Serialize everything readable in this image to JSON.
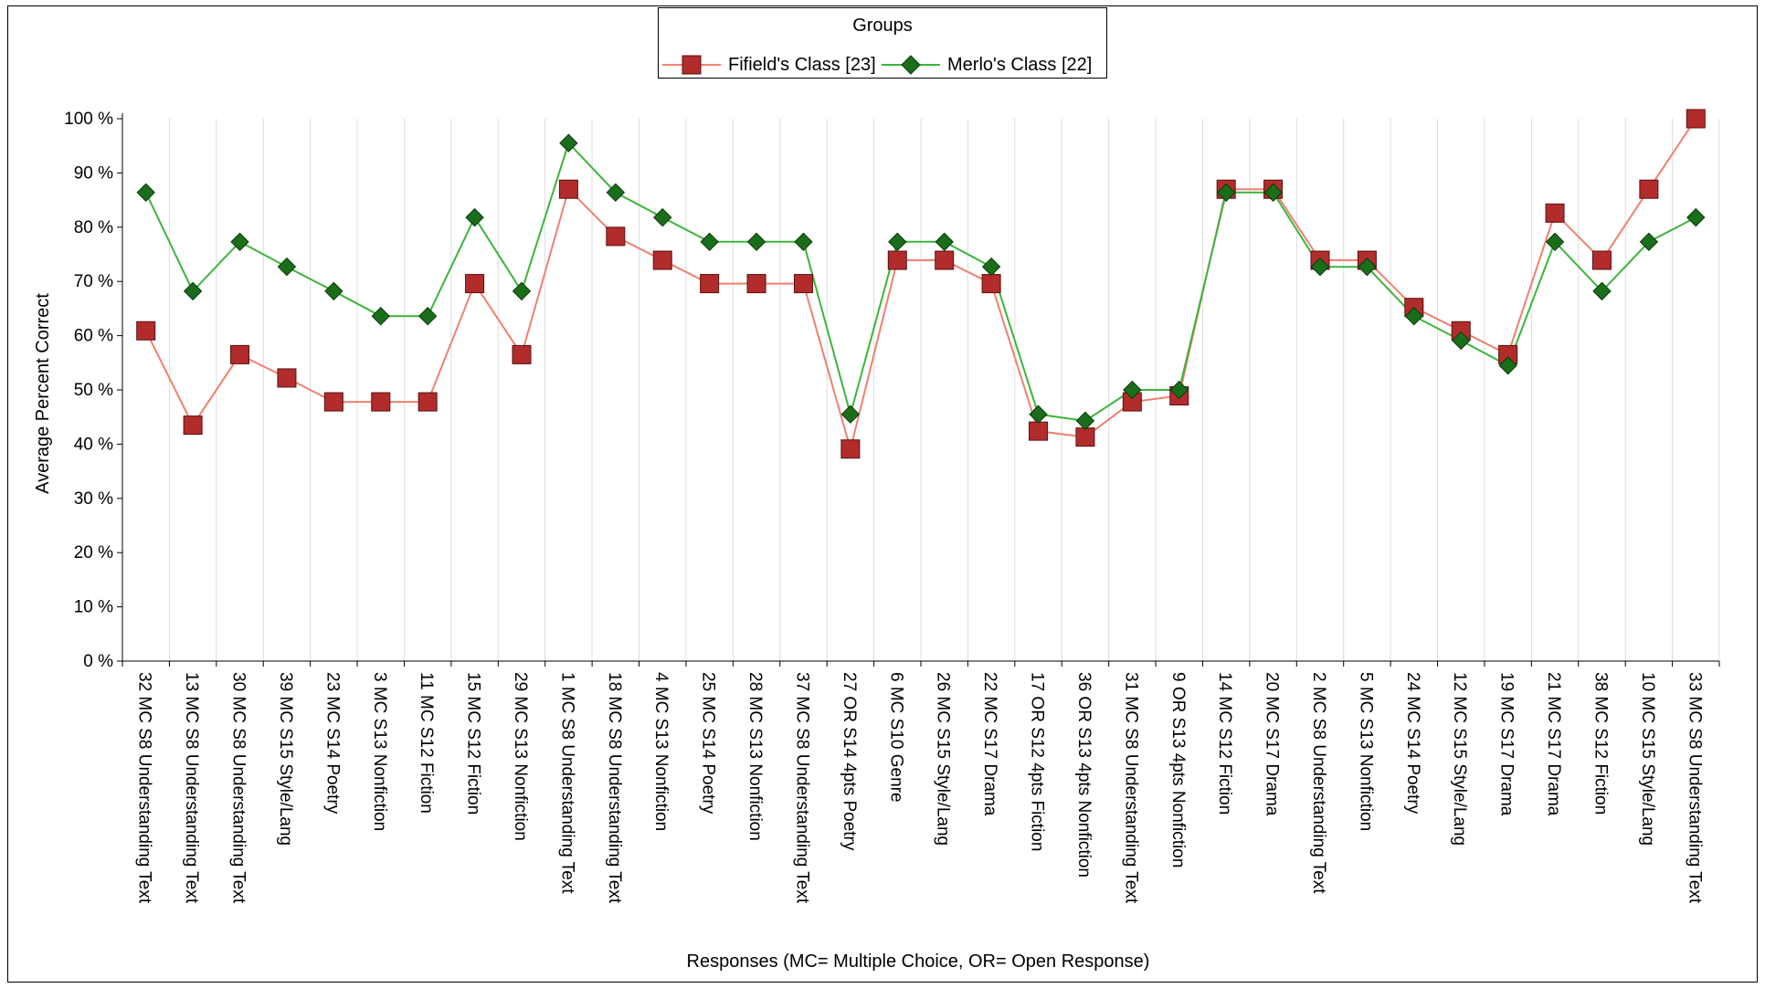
{
  "chart_data": {
    "type": "line",
    "legend_title": "Groups",
    "legend_position": "top-center",
    "ylabel": "Average Percent Correct",
    "xlabel": "Responses (MC= Multiple Choice, OR= Open Response)",
    "ylim": [
      0,
      100
    ],
    "ytick_labels": [
      "0 %",
      "10 %",
      "20 %",
      "30 %",
      "40 %",
      "50 %",
      "60 %",
      "70 %",
      "80 %",
      "90 %",
      "100 %"
    ],
    "grid": "vertical",
    "categories": [
      "32 MC S8 Understanding Text",
      "13 MC S8 Understanding Text",
      "30 MC S8 Understanding Text",
      "39 MC S15 Style/Lang",
      "23 MC S14 Poetry",
      "3 MC S13 Nonfiction",
      "11 MC S12 Fiction",
      "15 MC S12 Fiction",
      "29 MC S13 Nonfiction",
      "1 MC S8 Understanding Text",
      "18 MC S8 Understanding Text",
      "4 MC S13 Nonfiction",
      "25 MC S14 Poetry",
      "28 MC S13 Nonfiction",
      "37 MC S8 Understanding Text",
      "27 OR S14 4pts Poetry",
      "6 MC S10 Genre",
      "26 MC S15 Style/Lang",
      "22 MC S17 Drama",
      "17 OR S12 4pts Fiction",
      "36 OR S13 4pts Nonfiction",
      "31 MC S8 Understanding Text",
      "9 OR S13 4pts Nonfiction",
      "14 MC S12 Fiction",
      "20 MC S17 Drama",
      "2 MC S8 Understanding Text",
      "5 MC S13 Nonfiction",
      "24 MC S14 Poetry",
      "12 MC S15 Style/Lang",
      "19 MC S17 Drama",
      "21 MC S17 Drama",
      "38 MC S12 Fiction",
      "10 MC S15 Style/Lang",
      "33 MC S8 Understanding Text"
    ],
    "series": [
      {
        "name": "Fifield's Class [23]",
        "marker": "square",
        "line_color": "#f08070",
        "marker_color": "#b22c2c",
        "values": [
          60.9,
          43.5,
          56.5,
          52.2,
          47.8,
          47.8,
          47.8,
          69.6,
          56.5,
          87.0,
          78.3,
          73.9,
          69.6,
          69.6,
          69.6,
          39.1,
          73.9,
          73.9,
          69.6,
          42.4,
          41.3,
          47.8,
          48.9,
          87.0,
          87.0,
          73.9,
          73.9,
          65.2,
          60.9,
          56.5,
          82.6,
          73.9,
          87.0,
          100.0
        ]
      },
      {
        "name": "Merlo's Class [22]",
        "marker": "diamond",
        "line_color": "#3cb43c",
        "marker_color": "#1a6e1a",
        "values": [
          86.4,
          68.2,
          77.3,
          72.7,
          68.2,
          63.6,
          63.6,
          81.8,
          68.2,
          95.5,
          86.4,
          81.8,
          77.3,
          77.3,
          77.3,
          45.5,
          77.3,
          77.3,
          72.7,
          45.5,
          44.3,
          50.0,
          50.0,
          86.4,
          86.4,
          72.7,
          72.7,
          63.6,
          59.1,
          54.5,
          77.3,
          68.2,
          77.3,
          81.8
        ]
      }
    ]
  }
}
